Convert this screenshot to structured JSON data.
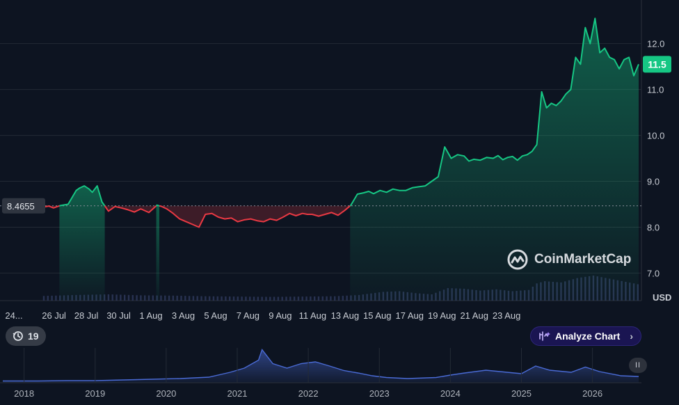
{
  "chart_data": {
    "type": "line",
    "currency_label": "USD",
    "baseline_value": 8.4655,
    "baseline_label": "8.4655",
    "current_price_label": "11.5",
    "ylim": [
      6.4,
      12.95
    ],
    "y_ticks": [
      12.0,
      11.0,
      10.0,
      9.0,
      8.0,
      7.0
    ],
    "y_tick_labels": [
      "12.0",
      "11.0",
      "10.0",
      "9.0",
      "8.0",
      "7.0"
    ],
    "x_tick_labels": [
      "24...",
      "26 Jul",
      "28 Jul",
      "30 Jul",
      "1 Aug",
      "3 Aug",
      "5 Aug",
      "7 Aug",
      "9 Aug",
      "11 Aug",
      "13 Aug",
      "15 Aug",
      "17 Aug",
      "19 Aug",
      "21 Aug",
      "23 Aug"
    ],
    "colors": {
      "up": "#16c784",
      "down": "#ea3943",
      "background": "#0d1421",
      "volume": "#2b3556",
      "navigator": "#4a6bd6",
      "badge": "#16c784"
    },
    "price_series": {
      "x_days": [
        0,
        0.3,
        0.6,
        1.0,
        1.5,
        2.0,
        2.2,
        2.5,
        2.8,
        3.0,
        3.3,
        3.6,
        4.0,
        4.4,
        4.8,
        5.2,
        5.6,
        6.0,
        6.5,
        7.0,
        7.3,
        7.6,
        8.0,
        8.4,
        8.8,
        9.2,
        9.6,
        10.0,
        10.4,
        10.8,
        11.2,
        11.6,
        12.0,
        12.4,
        12.8,
        13.2,
        13.6,
        14.0,
        14.4,
        14.8,
        15.2,
        15.6,
        16.0,
        16.3,
        16.6,
        17.0,
        17.4,
        17.8,
        18.2,
        18.6,
        19.0,
        19.4,
        19.8,
        20.1,
        20.4,
        20.8,
        21.2,
        21.6,
        22.0,
        22.4,
        22.8,
        23.2,
        23.6,
        24.0,
        24.4,
        24.8,
        25.2,
        25.6,
        26.0,
        26.3,
        26.6,
        27.0,
        27.4,
        27.8,
        28.1,
        28.4,
        28.7,
        29.0,
        29.3,
        29.6,
        29.9,
        30.2,
        30.5,
        30.8,
        31.1,
        31.4,
        31.7,
        32.0,
        32.3,
        32.6,
        32.9,
        33.2,
        33.5,
        33.8,
        34.1,
        34.4,
        34.7,
        35.0,
        35.3,
        35.6,
        35.9,
        36.2,
        36.5,
        36.8
      ],
      "y": [
        8.44,
        8.46,
        8.42,
        8.47,
        8.5,
        8.8,
        8.85,
        8.9,
        8.83,
        8.76,
        8.9,
        8.55,
        8.35,
        8.45,
        8.42,
        8.38,
        8.33,
        8.4,
        8.32,
        8.48,
        8.45,
        8.4,
        8.3,
        8.18,
        8.12,
        8.06,
        8.0,
        8.28,
        8.3,
        8.22,
        8.18,
        8.2,
        8.12,
        8.16,
        8.18,
        8.14,
        8.12,
        8.18,
        8.15,
        8.22,
        8.3,
        8.25,
        8.3,
        8.28,
        8.28,
        8.24,
        8.28,
        8.32,
        8.26,
        8.36,
        8.48,
        8.72,
        8.75,
        8.78,
        8.73,
        8.8,
        8.76,
        8.83,
        8.8,
        8.8,
        8.86,
        8.88,
        8.9,
        9.0,
        9.1,
        9.75,
        9.5,
        9.58,
        9.55,
        9.44,
        9.48,
        9.46,
        9.52,
        9.5,
        9.56,
        9.47,
        9.52,
        9.54,
        9.46,
        9.55,
        9.58,
        9.65,
        9.8,
        10.95,
        10.6,
        10.7,
        10.65,
        10.75,
        10.9,
        11.0,
        11.7,
        11.55,
        12.35,
        12.0,
        12.55,
        11.8,
        11.9,
        11.7,
        11.65,
        11.45,
        11.65,
        11.7,
        11.3,
        11.55
      ]
    },
    "volume_series": {
      "x_days": [
        0,
        2,
        4,
        6,
        8,
        10,
        12,
        14,
        16,
        18,
        19.5,
        21,
        22,
        23,
        24,
        25,
        26,
        27,
        28,
        29,
        30,
        30.5,
        31,
        32,
        33,
        34,
        35,
        36,
        36.8
      ],
      "values": [
        0.15,
        0.18,
        0.2,
        0.17,
        0.16,
        0.14,
        0.13,
        0.12,
        0.13,
        0.14,
        0.18,
        0.28,
        0.3,
        0.24,
        0.2,
        0.4,
        0.38,
        0.32,
        0.36,
        0.3,
        0.34,
        0.55,
        0.62,
        0.58,
        0.72,
        0.8,
        0.7,
        0.6,
        0.52
      ]
    },
    "navigator": {
      "year_labels": [
        "2018",
        "2019",
        "2020",
        "2021",
        "2022",
        "2023",
        "2024",
        "2025",
        "2026"
      ],
      "x_years": [
        2017.7,
        2018.2,
        2018.6,
        2019.0,
        2019.4,
        2019.8,
        2020.2,
        2020.6,
        2020.9,
        2021.1,
        2021.3,
        2021.35,
        2021.5,
        2021.7,
        2021.9,
        2022.1,
        2022.3,
        2022.5,
        2022.7,
        2022.9,
        2023.1,
        2023.4,
        2023.8,
        2024.0,
        2024.2,
        2024.5,
        2024.8,
        2025.0,
        2025.2,
        2025.4,
        2025.7,
        2025.9,
        2026.1,
        2026.4,
        2026.65
      ],
      "values": [
        0.05,
        0.05,
        0.06,
        0.06,
        0.08,
        0.1,
        0.12,
        0.16,
        0.3,
        0.42,
        0.65,
        0.95,
        0.55,
        0.42,
        0.55,
        0.6,
        0.48,
        0.35,
        0.28,
        0.2,
        0.15,
        0.12,
        0.15,
        0.22,
        0.28,
        0.36,
        0.3,
        0.26,
        0.48,
        0.36,
        0.3,
        0.45,
        0.32,
        0.2,
        0.18
      ]
    }
  },
  "ui": {
    "watermark": "CoinMarketCap",
    "history_count": "19",
    "analyze_label": "Analyze Chart",
    "pause_label": "II"
  }
}
